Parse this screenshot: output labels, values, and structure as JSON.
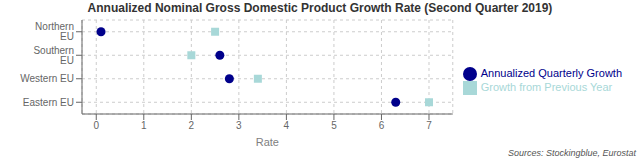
{
  "chart_data": {
    "type": "scatter",
    "title": "Annualized Nominal Gross Domestic Product Growth Rate (Second Quarter 2019)",
    "xlabel": "Rate",
    "categories": [
      "Northern EU",
      "Southern EU",
      "Western EU",
      "Eastern EU"
    ],
    "series": [
      {
        "name": "Annualized Quarterly Growth",
        "color": "#00008B",
        "marker": "circle",
        "values": [
          0.1,
          2.6,
          2.8,
          6.3
        ]
      },
      {
        "name": "Growth from Previous Year",
        "color": "#A8D8D8",
        "marker": "square",
        "values": [
          2.5,
          2.0,
          3.4,
          7.0
        ]
      }
    ],
    "xlim": [
      -0.3,
      7.5
    ],
    "xticks": [
      0,
      1,
      2,
      3,
      4,
      5,
      6,
      7
    ],
    "grid": true,
    "legend": "right",
    "annotations": [
      "Sources: Stockingblue, Eurostat"
    ]
  }
}
